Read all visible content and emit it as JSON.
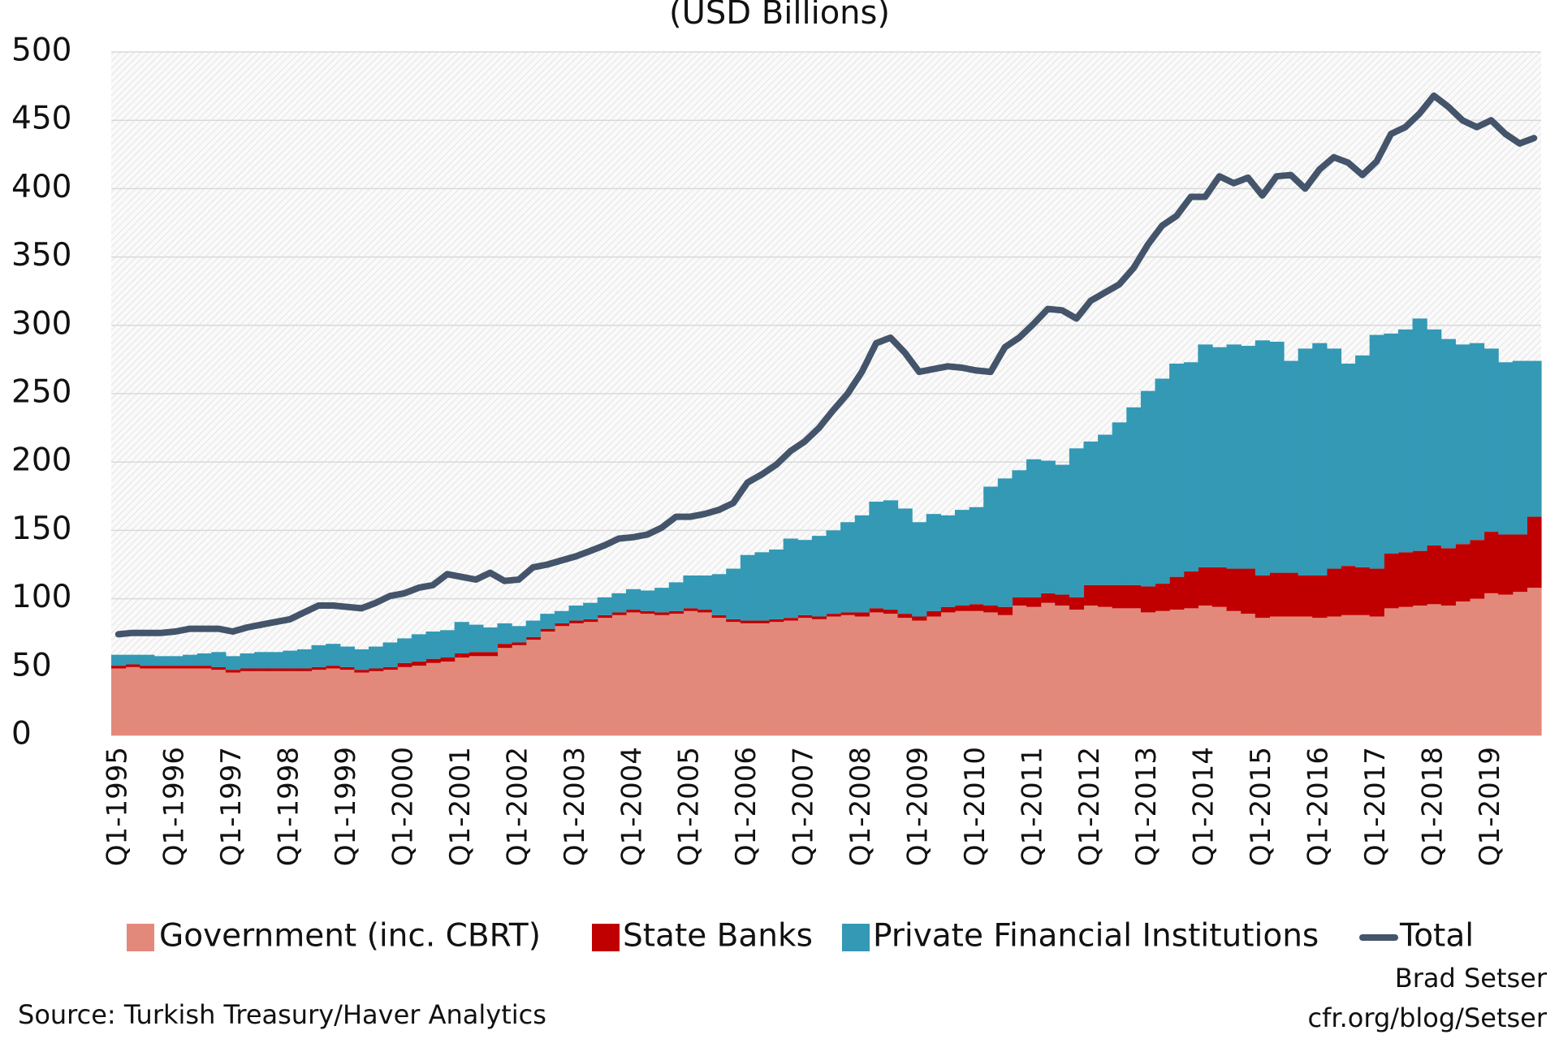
{
  "chart_data": {
    "type": "stacked-area-line",
    "title": "(USD Billions)",
    "categories": [
      "Q1-1995",
      null,
      null,
      null,
      "Q1-1996",
      null,
      null,
      null,
      "Q1-1997",
      null,
      null,
      null,
      "Q1-1998",
      null,
      null,
      null,
      "Q1-1999",
      null,
      null,
      null,
      "Q1-2000",
      null,
      null,
      null,
      "Q1-2001",
      null,
      null,
      null,
      "Q1-2002",
      null,
      null,
      null,
      "Q1-2003",
      null,
      null,
      null,
      "Q1-2004",
      null,
      null,
      null,
      "Q1-2005",
      null,
      null,
      null,
      "Q1-2006",
      null,
      null,
      null,
      "Q1-2007",
      null,
      null,
      null,
      "Q1-2008",
      null,
      null,
      null,
      "Q1-2009",
      null,
      null,
      null,
      "Q1-2010",
      null,
      null,
      null,
      "Q1-2011",
      null,
      null,
      null,
      "Q1-2012",
      null,
      null,
      null,
      "Q1-2013",
      null,
      null,
      null,
      "Q1-2014",
      null,
      null,
      null,
      "Q1-2015",
      null,
      null,
      null,
      "Q1-2016",
      null,
      null,
      null,
      "Q1-2017",
      null,
      null,
      null,
      "Q1-2018",
      null,
      null,
      null,
      "Q1-2019",
      null,
      null,
      null
    ],
    "series": [
      {
        "name": "Government (inc. CBRT)",
        "color": "#e3897b",
        "type": "area",
        "values": [
          49,
          50,
          49,
          49,
          49,
          49,
          49,
          48,
          46,
          47,
          47,
          47,
          47,
          47,
          48,
          49,
          48,
          46,
          47,
          48,
          50,
          51,
          53,
          54,
          57,
          58,
          58,
          64,
          66,
          70,
          76,
          80,
          82,
          83,
          86,
          88,
          90,
          89,
          88,
          89,
          91,
          90,
          86,
          83,
          82,
          82,
          83,
          84,
          86,
          85,
          87,
          88,
          87,
          90,
          89,
          86,
          84,
          87,
          90,
          91,
          91,
          90,
          88,
          95,
          94,
          97,
          95,
          92,
          95,
          94,
          93,
          93,
          90,
          91,
          92,
          93,
          95,
          94,
          91,
          89,
          86,
          87,
          87,
          87,
          86,
          87,
          88,
          88,
          87,
          93,
          94,
          95,
          96,
          95,
          98,
          100,
          104,
          103,
          105,
          108
        ]
      },
      {
        "name": "State Banks",
        "color": "#c00000",
        "type": "area",
        "values": [
          2,
          2,
          2,
          2,
          2,
          2,
          2,
          2,
          2,
          2,
          2,
          2,
          2,
          2,
          2,
          2,
          2,
          2,
          2,
          2,
          3,
          3,
          3,
          3,
          3,
          3,
          3,
          3,
          2,
          2,
          2,
          2,
          2,
          2,
          2,
          2,
          2,
          2,
          2,
          2,
          2,
          2,
          2,
          2,
          2,
          2,
          2,
          2,
          2,
          2,
          2,
          2,
          3,
          3,
          3,
          3,
          3,
          4,
          4,
          4,
          5,
          5,
          6,
          6,
          7,
          7,
          8,
          9,
          15,
          16,
          17,
          17,
          19,
          20,
          24,
          27,
          28,
          29,
          31,
          33,
          31,
          32,
          32,
          30,
          31,
          35,
          36,
          35,
          35,
          40,
          40,
          40,
          43,
          42,
          42,
          43,
          45,
          44,
          42,
          52
        ]
      },
      {
        "name": "Private Financial Institutions",
        "color": "#3399b5",
        "type": "area",
        "values": [
          8,
          7,
          8,
          7,
          7,
          8,
          9,
          11,
          10,
          11,
          12,
          12,
          13,
          14,
          16,
          16,
          15,
          15,
          16,
          18,
          18,
          20,
          20,
          20,
          23,
          20,
          18,
          15,
          12,
          12,
          11,
          9,
          11,
          12,
          13,
          14,
          15,
          15,
          18,
          21,
          24,
          25,
          30,
          37,
          48,
          50,
          51,
          58,
          55,
          59,
          61,
          66,
          71,
          78,
          80,
          77,
          69,
          71,
          67,
          70,
          71,
          87,
          94,
          93,
          101,
          97,
          95,
          109,
          105,
          110,
          119,
          130,
          143,
          150,
          156,
          153,
          163,
          161,
          164,
          163,
          172,
          169,
          155,
          166,
          170,
          161,
          148,
          155,
          171,
          161,
          163,
          170,
          158,
          153,
          146,
          144,
          134,
          126,
          127,
          114
        ]
      },
      {
        "name": "Total",
        "color": "#44546a",
        "type": "line",
        "values": [
          74,
          75,
          75,
          75,
          76,
          78,
          78,
          78,
          76,
          79,
          81,
          83,
          85,
          90,
          95,
          95,
          94,
          93,
          97,
          102,
          104,
          108,
          110,
          118,
          116,
          114,
          119,
          113,
          114,
          123,
          125,
          128,
          131,
          135,
          139,
          144,
          145,
          147,
          152,
          160,
          160,
          162,
          165,
          170,
          185,
          191,
          198,
          208,
          215,
          225,
          238,
          250,
          266,
          287,
          291,
          280,
          266,
          268,
          270,
          269,
          267,
          266,
          284,
          291,
          301,
          312,
          311,
          305,
          318,
          324,
          330,
          342,
          359,
          373,
          380,
          394,
          394,
          409,
          404,
          408,
          395,
          409,
          410,
          400,
          414,
          423,
          419,
          410,
          420,
          440,
          445,
          455,
          468,
          460,
          450,
          445,
          450,
          440,
          433,
          437
        ]
      }
    ],
    "ylim": [
      0,
      500
    ],
    "yticks": [
      0,
      50,
      100,
      150,
      200,
      250,
      300,
      350,
      400,
      450,
      500
    ],
    "grid": true,
    "legend": "bottom",
    "source": "Source: Turkish Treasury/Haver Analytics",
    "credit": [
      "Brad Setser",
      "cfr.org/blog/Setser"
    ]
  }
}
